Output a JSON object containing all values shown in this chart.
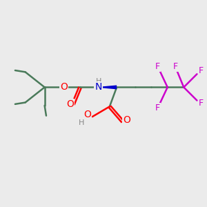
{
  "bg_color": "#ebebeb",
  "bond_color": "#4a7a5a",
  "bond_width": 1.8,
  "O_color": "#ff0000",
  "N_color": "#0000cc",
  "F_color": "#cc00cc",
  "H_color": "#888888",
  "figsize": [
    3.0,
    3.0
  ],
  "dpi": 100,
  "xlim": [
    0,
    10
  ],
  "ylim": [
    0,
    10
  ]
}
